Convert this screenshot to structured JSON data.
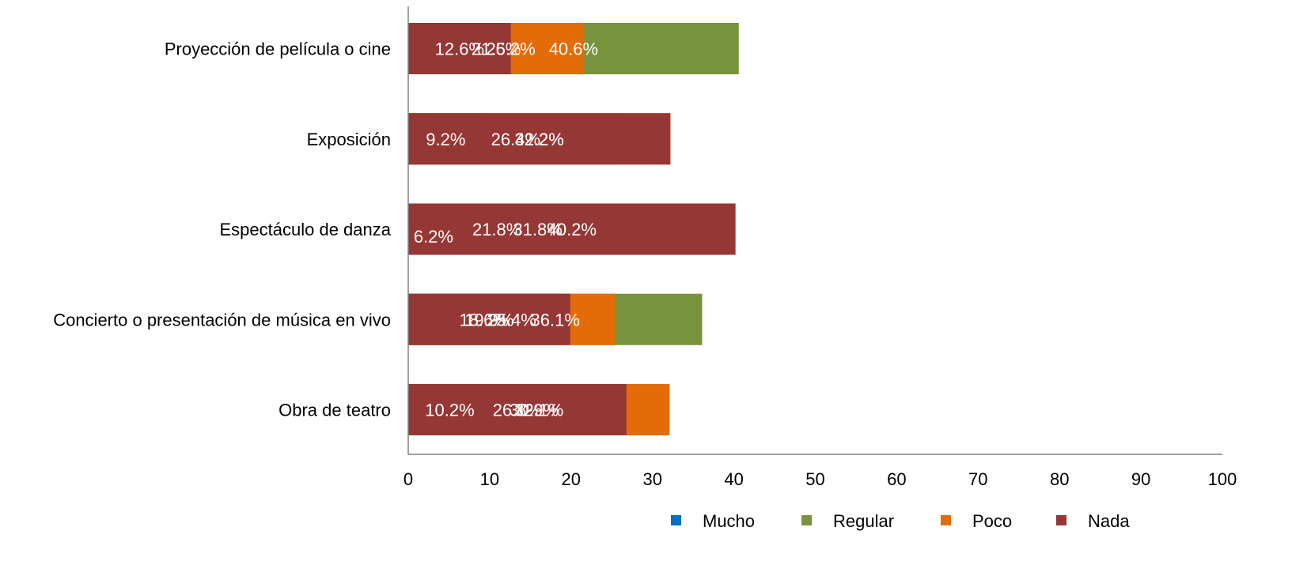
{
  "chart_data": {
    "type": "bar",
    "orientation": "horizontal",
    "stacked": true,
    "title": "",
    "xlabel": "",
    "ylabel": "",
    "xlim": [
      0,
      100
    ],
    "xticks": [
      "0",
      "10",
      "20",
      "30",
      "40",
      "50",
      "60",
      "70",
      "80",
      "90",
      "100"
    ],
    "grid": false,
    "legend_position": "bottom",
    "categories": [
      "Proyección de película o cine",
      "Exposición",
      "Espectáculo de danza",
      "Concierto o presentación de música en vivo",
      "Obra de teatro"
    ],
    "series": [
      {
        "name": "Mucho",
        "color": "#0070C0",
        "values": [
          25.2,
          9.2,
          6.2,
          18.6,
          10.2
        ],
        "labels": [
          "25.2%",
          "9.2%",
          "6.2%",
          "18.6%",
          "10.2%"
        ]
      },
      {
        "name": "Regular",
        "color": "#77933C",
        "values": [
          40.6,
          26.4,
          21.8,
          36.1,
          30.9
        ],
        "labels": [
          "40.6%",
          "26.4%",
          "21.8%",
          "36.1%",
          "30.9%"
        ]
      },
      {
        "name": "Poco",
        "color": "#E36C09",
        "values": [
          21.6,
          32.2,
          31.8,
          25.4,
          32.1
        ],
        "labels": [
          "21.6%",
          "32.2%",
          "31.8%",
          "25.4%",
          "32.1%"
        ]
      },
      {
        "name": "Nada",
        "color": "#953735",
        "values": [
          12.6,
          32.2,
          40.2,
          19.9,
          26.8
        ],
        "labels": [
          "12.6%",
          "32.2%",
          "40.2%",
          "19.9%",
          "26.8%"
        ]
      }
    ]
  }
}
